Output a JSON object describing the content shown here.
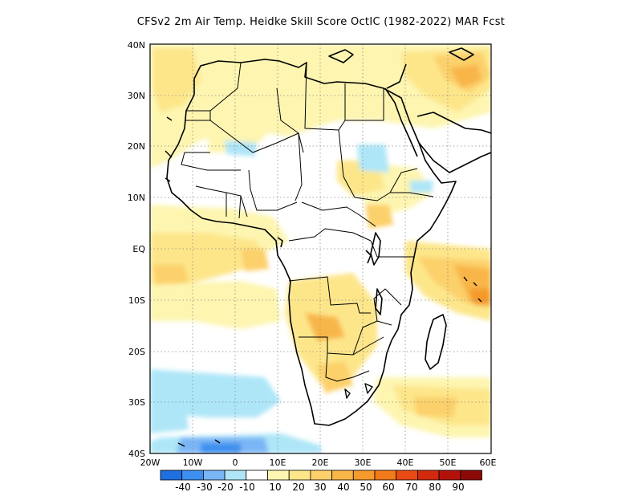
{
  "title": "CFSv2  2m Air Temp. Heidke Skill Score OctIC (1982-2022) MAR Fcst",
  "map": {
    "lon_range": [
      -20,
      60
    ],
    "lat_range": [
      -40,
      40
    ],
    "lon_ticks": [
      {
        "lon": -20,
        "label": "20W"
      },
      {
        "lon": -10,
        "label": "10W"
      },
      {
        "lon": 0,
        "label": "0"
      },
      {
        "lon": 10,
        "label": "10E"
      },
      {
        "lon": 20,
        "label": "20E"
      },
      {
        "lon": 30,
        "label": "30E"
      },
      {
        "lon": 40,
        "label": "40E"
      },
      {
        "lon": 50,
        "label": "50E"
      },
      {
        "lon": 60,
        "label": "60E"
      }
    ],
    "lat_ticks": [
      {
        "lat": 40,
        "label": "40N"
      },
      {
        "lat": 30,
        "label": "30N"
      },
      {
        "lat": 20,
        "label": "20N"
      },
      {
        "lat": 10,
        "label": "10N"
      },
      {
        "lat": 0,
        "label": "EQ"
      },
      {
        "lat": -10,
        "label": "10S"
      },
      {
        "lat": -20,
        "label": "20S"
      },
      {
        "lat": -30,
        "label": "30S"
      },
      {
        "lat": -40,
        "label": "40S"
      }
    ],
    "grid": "dotted"
  },
  "colorbar": {
    "colors": [
      "#1f6fe0",
      "#3d8ff0",
      "#7ab6f5",
      "#aee6f8",
      "#ffffff",
      "#fdf5b0",
      "#fde68a",
      "#fcd06a",
      "#f8b648",
      "#f59a2c",
      "#f27a1a",
      "#ea4a14",
      "#d22a0e",
      "#b3120a",
      "#8c0a06"
    ],
    "labels": [
      "-40",
      "-30",
      "-20",
      "-10",
      "10",
      "20",
      "30",
      "40",
      "50",
      "60",
      "70",
      "80",
      "90"
    ]
  }
}
